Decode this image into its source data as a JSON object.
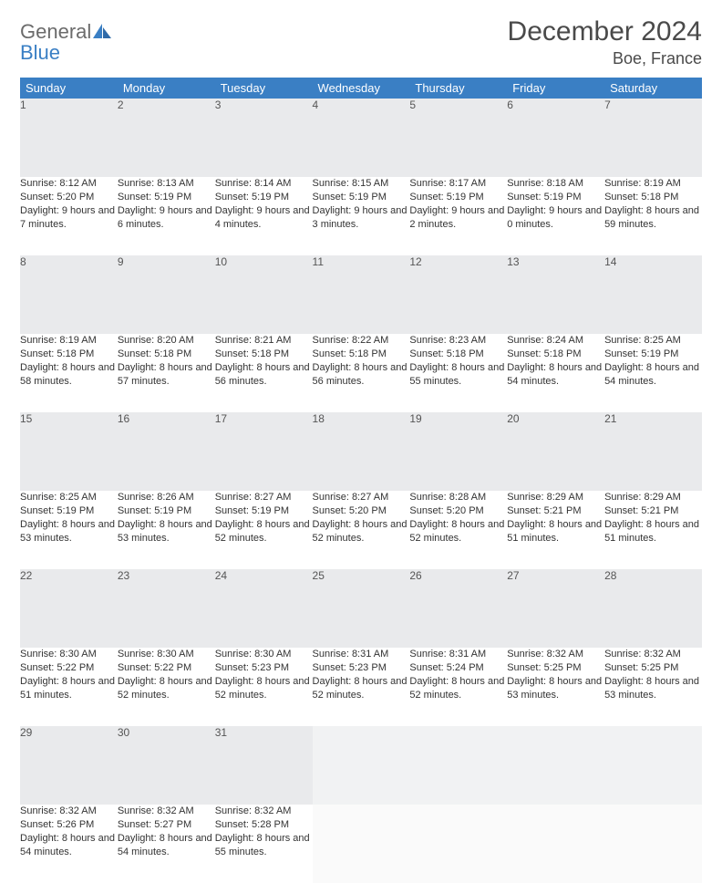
{
  "logo": {
    "word1": "General",
    "word2": "Blue"
  },
  "title": "December 2024",
  "location": "Boe, France",
  "colors": {
    "header_bg": "#3a7fc4",
    "header_text": "#ffffff",
    "daynum_bg": "#e9eaec",
    "row_divider": "#3a7fc4",
    "text": "#333333",
    "title_text": "#4a4a4a"
  },
  "weekdays": [
    "Sunday",
    "Monday",
    "Tuesday",
    "Wednesday",
    "Thursday",
    "Friday",
    "Saturday"
  ],
  "weeks": [
    [
      {
        "n": "1",
        "sunrise": "8:12 AM",
        "sunset": "5:20 PM",
        "daylight": "9 hours and 7 minutes."
      },
      {
        "n": "2",
        "sunrise": "8:13 AM",
        "sunset": "5:19 PM",
        "daylight": "9 hours and 6 minutes."
      },
      {
        "n": "3",
        "sunrise": "8:14 AM",
        "sunset": "5:19 PM",
        "daylight": "9 hours and 4 minutes."
      },
      {
        "n": "4",
        "sunrise": "8:15 AM",
        "sunset": "5:19 PM",
        "daylight": "9 hours and 3 minutes."
      },
      {
        "n": "5",
        "sunrise": "8:17 AM",
        "sunset": "5:19 PM",
        "daylight": "9 hours and 2 minutes."
      },
      {
        "n": "6",
        "sunrise": "8:18 AM",
        "sunset": "5:19 PM",
        "daylight": "9 hours and 0 minutes."
      },
      {
        "n": "7",
        "sunrise": "8:19 AM",
        "sunset": "5:18 PM",
        "daylight": "8 hours and 59 minutes."
      }
    ],
    [
      {
        "n": "8",
        "sunrise": "8:19 AM",
        "sunset": "5:18 PM",
        "daylight": "8 hours and 58 minutes."
      },
      {
        "n": "9",
        "sunrise": "8:20 AM",
        "sunset": "5:18 PM",
        "daylight": "8 hours and 57 minutes."
      },
      {
        "n": "10",
        "sunrise": "8:21 AM",
        "sunset": "5:18 PM",
        "daylight": "8 hours and 56 minutes."
      },
      {
        "n": "11",
        "sunrise": "8:22 AM",
        "sunset": "5:18 PM",
        "daylight": "8 hours and 56 minutes."
      },
      {
        "n": "12",
        "sunrise": "8:23 AM",
        "sunset": "5:18 PM",
        "daylight": "8 hours and 55 minutes."
      },
      {
        "n": "13",
        "sunrise": "8:24 AM",
        "sunset": "5:18 PM",
        "daylight": "8 hours and 54 minutes."
      },
      {
        "n": "14",
        "sunrise": "8:25 AM",
        "sunset": "5:19 PM",
        "daylight": "8 hours and 54 minutes."
      }
    ],
    [
      {
        "n": "15",
        "sunrise": "8:25 AM",
        "sunset": "5:19 PM",
        "daylight": "8 hours and 53 minutes."
      },
      {
        "n": "16",
        "sunrise": "8:26 AM",
        "sunset": "5:19 PM",
        "daylight": "8 hours and 53 minutes."
      },
      {
        "n": "17",
        "sunrise": "8:27 AM",
        "sunset": "5:19 PM",
        "daylight": "8 hours and 52 minutes."
      },
      {
        "n": "18",
        "sunrise": "8:27 AM",
        "sunset": "5:20 PM",
        "daylight": "8 hours and 52 minutes."
      },
      {
        "n": "19",
        "sunrise": "8:28 AM",
        "sunset": "5:20 PM",
        "daylight": "8 hours and 52 minutes."
      },
      {
        "n": "20",
        "sunrise": "8:29 AM",
        "sunset": "5:21 PM",
        "daylight": "8 hours and 51 minutes."
      },
      {
        "n": "21",
        "sunrise": "8:29 AM",
        "sunset": "5:21 PM",
        "daylight": "8 hours and 51 minutes."
      }
    ],
    [
      {
        "n": "22",
        "sunrise": "8:30 AM",
        "sunset": "5:22 PM",
        "daylight": "8 hours and 51 minutes."
      },
      {
        "n": "23",
        "sunrise": "8:30 AM",
        "sunset": "5:22 PM",
        "daylight": "8 hours and 52 minutes."
      },
      {
        "n": "24",
        "sunrise": "8:30 AM",
        "sunset": "5:23 PM",
        "daylight": "8 hours and 52 minutes."
      },
      {
        "n": "25",
        "sunrise": "8:31 AM",
        "sunset": "5:23 PM",
        "daylight": "8 hours and 52 minutes."
      },
      {
        "n": "26",
        "sunrise": "8:31 AM",
        "sunset": "5:24 PM",
        "daylight": "8 hours and 52 minutes."
      },
      {
        "n": "27",
        "sunrise": "8:32 AM",
        "sunset": "5:25 PM",
        "daylight": "8 hours and 53 minutes."
      },
      {
        "n": "28",
        "sunrise": "8:32 AM",
        "sunset": "5:25 PM",
        "daylight": "8 hours and 53 minutes."
      }
    ],
    [
      {
        "n": "29",
        "sunrise": "8:32 AM",
        "sunset": "5:26 PM",
        "daylight": "8 hours and 54 minutes."
      },
      {
        "n": "30",
        "sunrise": "8:32 AM",
        "sunset": "5:27 PM",
        "daylight": "8 hours and 54 minutes."
      },
      {
        "n": "31",
        "sunrise": "8:32 AM",
        "sunset": "5:28 PM",
        "daylight": "8 hours and 55 minutes."
      },
      null,
      null,
      null,
      null
    ]
  ],
  "labels": {
    "sunrise": "Sunrise: ",
    "sunset": "Sunset: ",
    "daylight": "Daylight: "
  }
}
